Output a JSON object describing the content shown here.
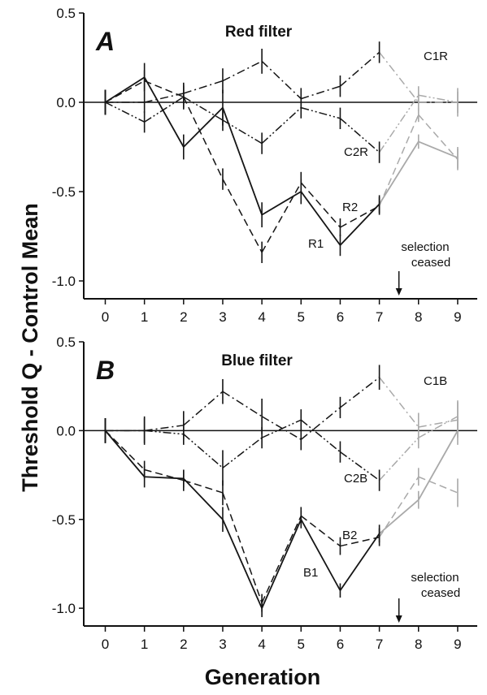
{
  "chart_data": [
    {
      "type": "line",
      "panel_letter": "A",
      "title": "Red filter",
      "xlabel": "Generation",
      "ylabel": "Threshold Q - Control Mean",
      "x": [
        0,
        1,
        2,
        3,
        4,
        5,
        6,
        7,
        8,
        9
      ],
      "xlim": [
        -0.55,
        9.5
      ],
      "ylim": [
        -1.1,
        0.5
      ],
      "yticks": [
        -1.0,
        -0.5,
        0.0,
        0.5
      ],
      "ytick_labels": [
        "-1.0",
        "-0.5",
        "0.0",
        "0.5"
      ],
      "xtick_labels": [
        "0",
        "1",
        "2",
        "3",
        "4",
        "5",
        "6",
        "7",
        "8",
        "9"
      ],
      "zero_line": true,
      "selection_ceased_x": 7.5,
      "annotation": [
        "selection",
        "ceased"
      ],
      "series": [
        {
          "name": "R1",
          "style": "solid",
          "values": [
            0.0,
            0.14,
            -0.25,
            -0.03,
            -0.63,
            -0.5,
            -0.8,
            -0.57,
            -0.22,
            -0.31
          ],
          "errors": [
            0.07,
            0.08,
            0.07,
            0.1,
            0.07,
            0.07,
            0.06,
            0.05,
            0.04,
            0.06
          ]
        },
        {
          "name": "R2",
          "style": "dashed",
          "values": [
            0.0,
            0.12,
            0.03,
            -0.43,
            -0.84,
            -0.45,
            -0.7,
            -0.58,
            -0.07,
            -0.32
          ],
          "errors": [
            0.07,
            0.06,
            0.07,
            0.06,
            0.06,
            0.06,
            0.05,
            0.05,
            0.04,
            0.06
          ]
        },
        {
          "name": "C1R",
          "style": "dashdot",
          "values": [
            0.0,
            0.0,
            0.05,
            0.12,
            0.23,
            0.02,
            0.09,
            0.28,
            0.0,
            0.0
          ],
          "errors": [
            0.07,
            0.06,
            0.06,
            0.07,
            0.07,
            0.06,
            0.06,
            0.06,
            0.05,
            0.08
          ]
        },
        {
          "name": "C2R",
          "style": "dashdotdot",
          "values": [
            0.0,
            -0.11,
            0.03,
            -0.1,
            -0.23,
            -0.03,
            -0.09,
            -0.28,
            0.04,
            0.0
          ],
          "errors": [
            0.07,
            0.06,
            0.06,
            0.06,
            0.06,
            0.06,
            0.06,
            0.06,
            0.05,
            0.06
          ]
        }
      ],
      "labels": {
        "c1": "C1R",
        "c2": "C2R",
        "s2": "R2",
        "s1": "R1"
      }
    },
    {
      "type": "line",
      "panel_letter": "B",
      "title": "Blue filter",
      "xlabel": "Generation",
      "ylabel": "Threshold Q - Control Mean",
      "x": [
        0,
        1,
        2,
        3,
        4,
        5,
        6,
        7,
        8,
        9
      ],
      "xlim": [
        -0.55,
        9.5
      ],
      "ylim": [
        -1.1,
        0.5
      ],
      "yticks": [
        -1.0,
        -0.5,
        0.0,
        0.5
      ],
      "ytick_labels": [
        "-1.0",
        "-0.5",
        "0.0",
        "0.5"
      ],
      "xtick_labels": [
        "0",
        "1",
        "2",
        "3",
        "4",
        "5",
        "6",
        "7",
        "8",
        "9"
      ],
      "zero_line": true,
      "selection_ceased_x": 7.5,
      "annotation": [
        "selection",
        "ceased"
      ],
      "series": [
        {
          "name": "B1",
          "style": "solid",
          "values": [
            0.0,
            -0.26,
            -0.27,
            -0.5,
            -1.0,
            -0.5,
            -0.9,
            -0.58,
            -0.39,
            0.0
          ],
          "errors": [
            0.07,
            0.06,
            0.05,
            0.07,
            0.05,
            0.05,
            0.04,
            0.05,
            0.05,
            0.08
          ]
        },
        {
          "name": "B2",
          "style": "dashed",
          "values": [
            0.0,
            -0.22,
            -0.28,
            -0.35,
            -0.97,
            -0.48,
            -0.65,
            -0.6,
            -0.26,
            -0.35
          ],
          "errors": [
            0.07,
            0.05,
            0.06,
            0.07,
            0.05,
            0.05,
            0.05,
            0.05,
            0.05,
            0.08
          ]
        },
        {
          "name": "C1B",
          "style": "dashdot",
          "values": [
            0.0,
            0.0,
            0.03,
            0.22,
            0.08,
            -0.05,
            0.13,
            0.3,
            0.02,
            0.06
          ],
          "errors": [
            0.07,
            0.08,
            0.08,
            0.07,
            0.1,
            0.06,
            0.06,
            0.07,
            0.08,
            0.1
          ]
        },
        {
          "name": "C2B",
          "style": "dashdotdot",
          "values": [
            0.0,
            0.0,
            -0.02,
            -0.21,
            -0.04,
            0.06,
            -0.12,
            -0.28,
            -0.04,
            0.08
          ],
          "errors": [
            0.07,
            0.07,
            0.06,
            0.1,
            0.06,
            0.06,
            0.06,
            0.06,
            0.06,
            0.09
          ]
        }
      ],
      "labels": {
        "c1": "C1B",
        "c2": "C2B",
        "s2": "B2",
        "s1": "B1"
      }
    }
  ]
}
